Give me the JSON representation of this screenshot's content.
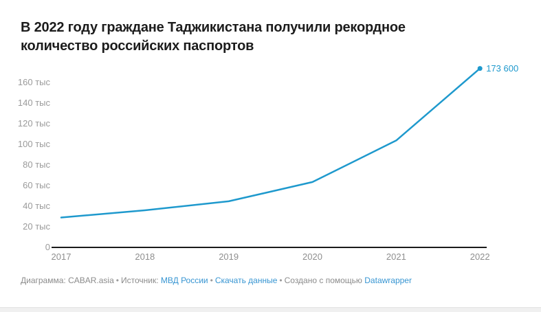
{
  "header": {
    "title": "В 2022 году граждане Таджикистана получили рекордное количество российских паспортов"
  },
  "chart_data": {
    "type": "line",
    "title": "В 2022 году граждане Таджикистана получили рекордное количество российских паспортов",
    "categories": [
      "2017",
      "2018",
      "2019",
      "2020",
      "2021",
      "2022"
    ],
    "values": [
      29000,
      36000,
      44700,
      63400,
      103700,
      173600
    ],
    "end_label": "173 600",
    "y_ticks": [
      0,
      20000,
      40000,
      60000,
      80000,
      100000,
      120000,
      140000,
      160000
    ],
    "y_tick_labels": [
      "0",
      "20 тыс",
      "40 тыс",
      "60 тыс",
      "80 тыс",
      "100 тыс",
      "120 тыс",
      "140 тыс",
      "160 тыс"
    ],
    "ylim": [
      0,
      173600
    ],
    "xlabel": "",
    "ylabel": "",
    "grid": false,
    "legend": false,
    "line_color": "#1e99cd"
  },
  "colors": {
    "accent": "#1e99cd",
    "link_blue": "#3795d2",
    "axis_black": "#1a1a1a",
    "y_tick_gray": "#9a9a9a",
    "x_tick_gray": "#8e8e8e",
    "title_color": "#1c1c1c",
    "footer_gray": "#8b8b8b"
  },
  "footer": {
    "byline": "Диаграмма: CABAR.asia",
    "source_label": "Источник:",
    "source_link": "МВД России",
    "download_link": "Скачать данные",
    "created_label": "Создано с помощью",
    "tool_link": "Datawrapper",
    "separator": "•"
  }
}
